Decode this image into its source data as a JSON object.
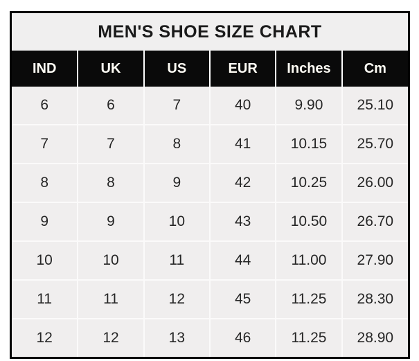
{
  "title": "MEN'S SHOE SIZE CHART",
  "colors": {
    "page_bg": "#ffffff",
    "outer_border": "#000000",
    "title_bg": "#f0efef",
    "title_text": "#1a1a1a",
    "header_bg": "#0a0a0a",
    "header_text": "#fffdf5",
    "cell_bg": "#f0eeee",
    "cell_text": "#262626",
    "divider": "#fbfafa"
  },
  "chart_data": {
    "type": "table",
    "title": "MEN'S SHOE SIZE CHART",
    "columns": [
      "IND",
      "UK",
      "US",
      "EUR",
      "Inches",
      "Cm"
    ],
    "rows": [
      [
        "6",
        "6",
        "7",
        "40",
        "9.90",
        "25.10"
      ],
      [
        "7",
        "7",
        "8",
        "41",
        "10.15",
        "25.70"
      ],
      [
        "8",
        "8",
        "9",
        "42",
        "10.25",
        "26.00"
      ],
      [
        "9",
        "9",
        "10",
        "43",
        "10.50",
        "26.70"
      ],
      [
        "10",
        "10",
        "11",
        "44",
        "11.00",
        "27.90"
      ],
      [
        "11",
        "11",
        "12",
        "45",
        "11.25",
        "28.30"
      ],
      [
        "12",
        "12",
        "13",
        "46",
        "11.25",
        "28.90"
      ]
    ],
    "layout": {
      "legend": "none",
      "grid": "light dividers between all cells",
      "header_style": "black background, white bold text",
      "title_position": "top center"
    }
  }
}
